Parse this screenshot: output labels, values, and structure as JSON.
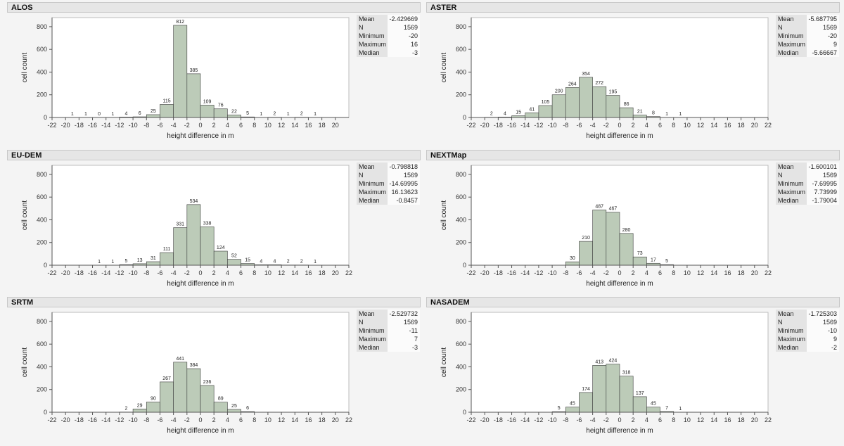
{
  "panels": [
    {
      "title": "ALOS",
      "stats": [
        [
          "Mean",
          "-2.429669"
        ],
        [
          "N",
          "1569"
        ],
        [
          "Minimum",
          "-20"
        ],
        [
          "Maximum",
          "16"
        ],
        [
          "Median",
          "-3"
        ]
      ],
      "chart_data": {
        "type": "bar",
        "xlabel": "height difference in m",
        "ylabel": "cell count",
        "xlim": [
          -22,
          22
        ],
        "ylim": [
          0,
          880
        ],
        "xticks": [
          -22,
          -20,
          -18,
          -16,
          -14,
          -12,
          -10,
          -8,
          -6,
          -4,
          -2,
          0,
          2,
          4,
          6,
          8,
          10,
          12,
          14,
          16,
          18,
          20
        ],
        "yticks": [
          0,
          200,
          400,
          600,
          800
        ],
        "bins": [
          [
            -20,
            1
          ],
          [
            -18,
            1
          ],
          [
            -16,
            0
          ],
          [
            -14,
            1
          ],
          [
            -12,
            4
          ],
          [
            -10,
            6
          ],
          [
            -8,
            25
          ],
          [
            -6,
            115
          ],
          [
            -4,
            812
          ],
          [
            -2,
            385
          ],
          [
            0,
            109
          ],
          [
            2,
            76
          ],
          [
            4,
            22
          ],
          [
            6,
            5
          ],
          [
            8,
            1
          ],
          [
            10,
            2
          ],
          [
            12,
            1
          ],
          [
            14,
            2
          ],
          [
            16,
            1
          ]
        ]
      }
    },
    {
      "title": "ASTER",
      "stats": [
        [
          "Mean",
          "-5.687795"
        ],
        [
          "N",
          "1569"
        ],
        [
          "Minimum",
          "-20"
        ],
        [
          "Maximum",
          "9"
        ],
        [
          "Median",
          "-5.66667"
        ]
      ],
      "chart_data": {
        "type": "bar",
        "xlabel": "height difference in m",
        "ylabel": "cell count",
        "xlim": [
          -22,
          22
        ],
        "ylim": [
          0,
          880
        ],
        "xticks": [
          -22,
          -20,
          -18,
          -16,
          -14,
          -12,
          -10,
          -8,
          -6,
          -4,
          -2,
          0,
          2,
          4,
          6,
          8,
          10,
          12,
          14,
          16,
          18,
          20,
          22
        ],
        "yticks": [
          0,
          200,
          400,
          600,
          800
        ],
        "bins": [
          [
            -20,
            2
          ],
          [
            -18,
            4
          ],
          [
            -16,
            15
          ],
          [
            -14,
            41
          ],
          [
            -12,
            105
          ],
          [
            -10,
            200
          ],
          [
            -8,
            264
          ],
          [
            -6,
            354
          ],
          [
            -4,
            272
          ],
          [
            -2,
            195
          ],
          [
            0,
            86
          ],
          [
            2,
            21
          ],
          [
            4,
            8
          ],
          [
            6,
            1
          ],
          [
            8,
            1
          ]
        ]
      }
    },
    {
      "title": "EU-DEM",
      "stats": [
        [
          "Mean",
          "-0.798818"
        ],
        [
          "N",
          "1569"
        ],
        [
          "Minimum",
          "-14.69995"
        ],
        [
          "Maximum",
          "16.13623"
        ],
        [
          "Median",
          "-0.8457"
        ]
      ],
      "chart_data": {
        "type": "bar",
        "xlabel": "height difference in m",
        "ylabel": "cell count",
        "xlim": [
          -22,
          22
        ],
        "ylim": [
          0,
          880
        ],
        "xticks": [
          -22,
          -20,
          -18,
          -16,
          -14,
          -12,
          -10,
          -8,
          -6,
          -4,
          -2,
          0,
          2,
          4,
          6,
          8,
          10,
          12,
          14,
          16,
          18,
          20,
          22
        ],
        "yticks": [
          0,
          200,
          400,
          600,
          800
        ],
        "bins": [
          [
            -16,
            1
          ],
          [
            -14,
            1
          ],
          [
            -12,
            5
          ],
          [
            -10,
            13
          ],
          [
            -8,
            31
          ],
          [
            -6,
            111
          ],
          [
            -4,
            331
          ],
          [
            -2,
            534
          ],
          [
            0,
            338
          ],
          [
            2,
            124
          ],
          [
            4,
            52
          ],
          [
            6,
            15
          ],
          [
            8,
            4
          ],
          [
            10,
            4
          ],
          [
            12,
            2
          ],
          [
            14,
            2
          ],
          [
            16,
            1
          ]
        ]
      }
    },
    {
      "title": "NEXTMap",
      "stats": [
        [
          "Mean",
          "-1.600101"
        ],
        [
          "N",
          "1569"
        ],
        [
          "Minimum",
          "-7.69995"
        ],
        [
          "Maximum",
          "7.73999"
        ],
        [
          "Median",
          "-1.79004"
        ]
      ],
      "chart_data": {
        "type": "bar",
        "xlabel": "height difference in m",
        "ylabel": "cell count",
        "xlim": [
          -22,
          22
        ],
        "ylim": [
          0,
          880
        ],
        "xticks": [
          -22,
          -20,
          -18,
          -16,
          -14,
          -12,
          -10,
          -8,
          -6,
          -4,
          -2,
          0,
          2,
          4,
          6,
          8,
          10,
          12,
          14,
          16,
          18,
          20,
          22
        ],
        "yticks": [
          0,
          200,
          400,
          600,
          800
        ],
        "bins": [
          [
            -8,
            30
          ],
          [
            -6,
            210
          ],
          [
            -4,
            487
          ],
          [
            -2,
            467
          ],
          [
            0,
            280
          ],
          [
            2,
            73
          ],
          [
            4,
            17
          ],
          [
            6,
            5
          ]
        ]
      }
    },
    {
      "title": "SRTM",
      "stats": [
        [
          "Mean",
          "-2.529732"
        ],
        [
          "N",
          "1569"
        ],
        [
          "Minimum",
          "-11"
        ],
        [
          "Maximum",
          "7"
        ],
        [
          "Median",
          "-3"
        ]
      ],
      "chart_data": {
        "type": "bar",
        "xlabel": "height difference in m",
        "ylabel": "cell count",
        "xlim": [
          -22,
          22
        ],
        "ylim": [
          0,
          880
        ],
        "xticks": [
          -22,
          -20,
          -18,
          -16,
          -14,
          -12,
          -10,
          -8,
          -6,
          -4,
          -2,
          0,
          2,
          4,
          6,
          8,
          10,
          12,
          14,
          16,
          18,
          20,
          22
        ],
        "yticks": [
          0,
          200,
          400,
          600,
          800
        ],
        "bins": [
          [
            -12,
            2
          ],
          [
            -10,
            29
          ],
          [
            -8,
            90
          ],
          [
            -6,
            267
          ],
          [
            -4,
            441
          ],
          [
            -2,
            384
          ],
          [
            0,
            236
          ],
          [
            2,
            89
          ],
          [
            4,
            25
          ],
          [
            6,
            6
          ]
        ]
      }
    },
    {
      "title": "NASADEM",
      "stats": [
        [
          "Mean",
          "-1.725303"
        ],
        [
          "N",
          "1569"
        ],
        [
          "Minimum",
          "-10"
        ],
        [
          "Maximum",
          "9"
        ],
        [
          "Median",
          "-2"
        ]
      ],
      "chart_data": {
        "type": "bar",
        "xlabel": "height difference in m",
        "ylabel": "cell count",
        "xlim": [
          -22,
          22
        ],
        "ylim": [
          0,
          880
        ],
        "xticks": [
          -22,
          -20,
          -18,
          -16,
          -14,
          -12,
          -10,
          -8,
          -6,
          -4,
          -2,
          0,
          2,
          4,
          6,
          8,
          10,
          12,
          14,
          16,
          18,
          20,
          22
        ],
        "yticks": [
          0,
          200,
          400,
          600,
          800
        ],
        "bins": [
          [
            -10,
            5
          ],
          [
            -8,
            45
          ],
          [
            -6,
            174
          ],
          [
            -4,
            413
          ],
          [
            -2,
            424
          ],
          [
            0,
            318
          ],
          [
            2,
            137
          ],
          [
            4,
            45
          ],
          [
            6,
            7
          ],
          [
            8,
            1
          ]
        ]
      }
    }
  ],
  "colors": {
    "bar_fill": "#bccbb8",
    "bar_stroke": "#3b3b3b",
    "axis": "#555555",
    "plot_bg": "#ffffff"
  }
}
